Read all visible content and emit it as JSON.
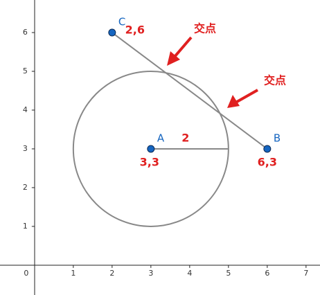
{
  "chart_data": {
    "type": "geometry",
    "xlim": [
      -0.89,
      7.36
    ],
    "ylim": [
      -0.77,
      6.84
    ],
    "xticks": [
      0,
      1,
      2,
      3,
      4,
      5,
      6,
      7
    ],
    "yticks": [
      1,
      2,
      3,
      4,
      5,
      6
    ],
    "points": [
      {
        "name": "A",
        "x": 3,
        "y": 3,
        "label": "3,3"
      },
      {
        "name": "B",
        "x": 6,
        "y": 3,
        "label": "6,3"
      },
      {
        "name": "C",
        "x": 2,
        "y": 6,
        "label": "2,6"
      }
    ],
    "circle": {
      "radius": 2,
      "radius_label": "2",
      "color": "#888888"
    },
    "point_color": "#1565c0",
    "annotations": [
      "交点",
      "交点"
    ]
  }
}
